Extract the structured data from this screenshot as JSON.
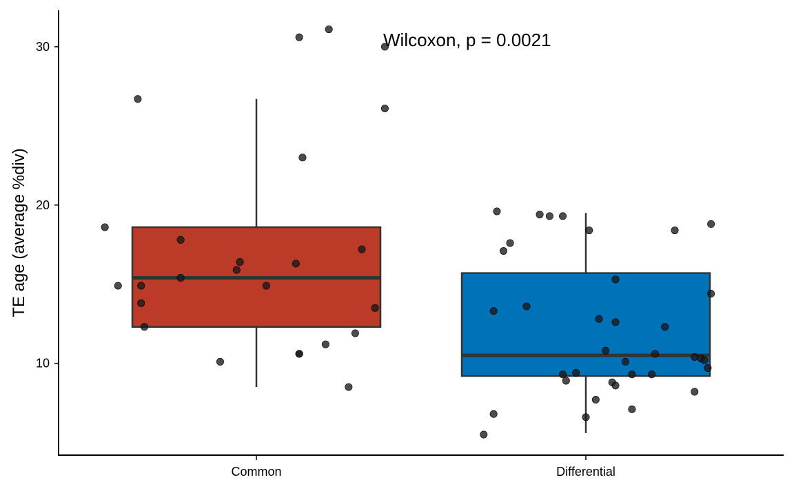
{
  "chart_data": {
    "type": "boxplot",
    "ylabel": "TE age (average %div)",
    "xlabel": "",
    "annotation": "Wilcoxon, p = 0.0021",
    "y_ticks": [
      10,
      20,
      30
    ],
    "ylim": [
      4.2,
      32.3
    ],
    "categories": [
      "Common",
      "Differential"
    ],
    "colors": {
      "Common": "#BB3A28",
      "Differential": "#0072B8"
    },
    "groups": [
      {
        "name": "Common",
        "stats": {
          "min": 8.5,
          "q1": 12.3,
          "median": 15.4,
          "q3": 18.6,
          "max": 26.7
        },
        "points": [
          {
            "jitter": -0.46,
            "y": 18.6
          },
          {
            "jitter": -0.42,
            "y": 14.9
          },
          {
            "jitter": -0.36,
            "y": 26.7
          },
          {
            "jitter": -0.35,
            "y": 14.9
          },
          {
            "jitter": -0.35,
            "y": 13.8
          },
          {
            "jitter": -0.34,
            "y": 12.3
          },
          {
            "jitter": -0.23,
            "y": 17.8
          },
          {
            "jitter": -0.23,
            "y": 15.4
          },
          {
            "jitter": -0.11,
            "y": 10.1
          },
          {
            "jitter": -0.06,
            "y": 15.9
          },
          {
            "jitter": -0.05,
            "y": 16.4
          },
          {
            "jitter": 0.03,
            "y": 14.9
          },
          {
            "jitter": 0.12,
            "y": 16.3
          },
          {
            "jitter": 0.13,
            "y": 10.6
          },
          {
            "jitter": 0.13,
            "y": 10.6
          },
          {
            "jitter": 0.13,
            "y": 30.6
          },
          {
            "jitter": 0.14,
            "y": 23.0
          },
          {
            "jitter": 0.21,
            "y": 11.2
          },
          {
            "jitter": 0.22,
            "y": 31.1
          },
          {
            "jitter": 0.28,
            "y": 8.5
          },
          {
            "jitter": 0.3,
            "y": 11.9
          },
          {
            "jitter": 0.32,
            "y": 17.2
          },
          {
            "jitter": 0.36,
            "y": 13.5
          },
          {
            "jitter": 0.39,
            "y": 30.0
          },
          {
            "jitter": 0.39,
            "y": 26.1
          }
        ]
      },
      {
        "name": "Differential",
        "stats": {
          "min": 5.6,
          "q1": 9.2,
          "median": 10.5,
          "q3": 15.7,
          "max": 19.5
        },
        "points": [
          {
            "jitter": -0.31,
            "y": 5.5
          },
          {
            "jitter": -0.28,
            "y": 6.8
          },
          {
            "jitter": -0.28,
            "y": 13.3
          },
          {
            "jitter": -0.27,
            "y": 19.6
          },
          {
            "jitter": -0.25,
            "y": 17.1
          },
          {
            "jitter": -0.23,
            "y": 17.6
          },
          {
            "jitter": -0.18,
            "y": 13.6
          },
          {
            "jitter": -0.14,
            "y": 19.4
          },
          {
            "jitter": -0.11,
            "y": 19.3
          },
          {
            "jitter": -0.07,
            "y": 19.3
          },
          {
            "jitter": -0.07,
            "y": 9.3
          },
          {
            "jitter": -0.06,
            "y": 8.9
          },
          {
            "jitter": -0.03,
            "y": 9.4
          },
          {
            "jitter": 0.0,
            "y": 6.6
          },
          {
            "jitter": 0.01,
            "y": 18.4
          },
          {
            "jitter": 0.03,
            "y": 7.7
          },
          {
            "jitter": 0.04,
            "y": 12.8
          },
          {
            "jitter": 0.06,
            "y": 10.8
          },
          {
            "jitter": 0.08,
            "y": 8.8
          },
          {
            "jitter": 0.09,
            "y": 12.6
          },
          {
            "jitter": 0.09,
            "y": 15.3
          },
          {
            "jitter": 0.09,
            "y": 8.6
          },
          {
            "jitter": 0.12,
            "y": 10.1
          },
          {
            "jitter": 0.14,
            "y": 9.3
          },
          {
            "jitter": 0.14,
            "y": 7.1
          },
          {
            "jitter": 0.2,
            "y": 9.3
          },
          {
            "jitter": 0.21,
            "y": 10.6
          },
          {
            "jitter": 0.24,
            "y": 12.3
          },
          {
            "jitter": 0.27,
            "y": 18.4
          },
          {
            "jitter": 0.33,
            "y": 8.2
          },
          {
            "jitter": 0.33,
            "y": 10.4
          },
          {
            "jitter": 0.35,
            "y": 10.3
          },
          {
            "jitter": 0.36,
            "y": 10.2
          },
          {
            "jitter": 0.37,
            "y": 9.7
          },
          {
            "jitter": 0.38,
            "y": 14.4
          },
          {
            "jitter": 0.38,
            "y": 18.8
          }
        ]
      }
    ]
  }
}
